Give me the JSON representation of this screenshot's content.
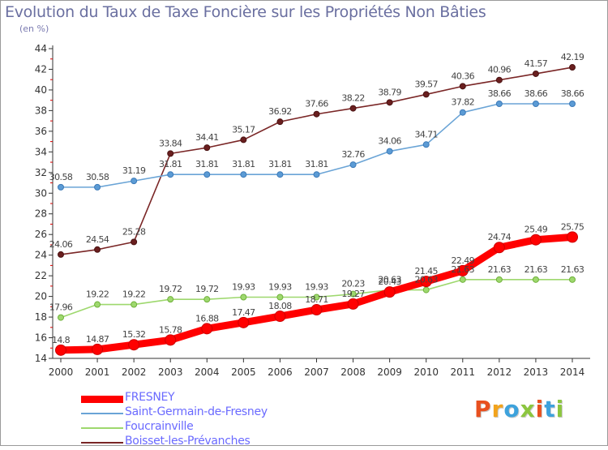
{
  "title": "Evolution du Taux de Taxe Foncière sur les Propriétés Non Bâties",
  "subtitle": "(en %)",
  "logo": {
    "text": "Proxiti",
    "colors": [
      "#e8501f",
      "#f2a31c",
      "#3da2dc",
      "#8cc63f",
      "#e8501f",
      "#3da2dc",
      "#8cc63f"
    ]
  },
  "chart_data": {
    "type": "line",
    "x": [
      "2000",
      "2001",
      "2002",
      "2003",
      "2004",
      "2005",
      "2006",
      "2007",
      "2008",
      "2009",
      "2010",
      "2011",
      "2012",
      "2013",
      "2014"
    ],
    "ylim": [
      14,
      44
    ],
    "yticks": [
      14,
      16,
      18,
      20,
      22,
      24,
      26,
      28,
      30,
      32,
      34,
      36,
      38,
      40,
      42,
      44
    ],
    "grid": false,
    "legend_position": "bottom-left",
    "series": [
      {
        "name": "FRESNEY",
        "color": "#ff0000",
        "values": [
          14.8,
          14.87,
          15.32,
          15.78,
          16.88,
          17.47,
          18.08,
          18.71,
          19.27,
          20.43,
          21.45,
          22.49,
          24.74,
          25.49,
          25.75
        ],
        "labels": [
          "14.8",
          "14.87",
          "15.32",
          "15.78",
          "16.88",
          "17.47",
          "18.08",
          "18.71",
          "19.27",
          "20.43",
          "21.45",
          "22.49",
          "24.74",
          "25.49",
          "25.75"
        ]
      },
      {
        "name": "Saint-Germain-de-Fresney",
        "color": "#6aa4d6",
        "values": [
          30.58,
          30.58,
          31.19,
          31.81,
          31.81,
          31.81,
          31.81,
          31.81,
          32.76,
          34.06,
          34.71,
          37.82,
          38.66,
          38.66,
          38.66
        ],
        "labels": [
          "30.58",
          "30.58",
          "31.19",
          "31.81",
          "31.81",
          "31.81",
          "31.81",
          "31.81",
          "32.76",
          "34.06",
          "34.71",
          "37.82",
          "38.66",
          "38.66",
          "38.66"
        ]
      },
      {
        "name": "Foucrainville",
        "color": "#9ed86e",
        "values": [
          17.96,
          19.22,
          19.22,
          19.72,
          19.72,
          19.93,
          19.93,
          19.93,
          20.23,
          20.63,
          20.63,
          21.63,
          21.63,
          21.63,
          21.63
        ],
        "labels": [
          "17.96",
          "19.22",
          "19.22",
          "19.72",
          "19.72",
          "19.93",
          "19.93",
          "19.93",
          "20.23",
          "20.63",
          "20.63",
          "21.63",
          "21.63",
          "21.63",
          "21.63"
        ]
      },
      {
        "name": "Boisset-les-Prévanches",
        "color": "#7a2626",
        "values": [
          24.06,
          24.54,
          25.28,
          33.84,
          34.41,
          35.17,
          36.92,
          37.66,
          38.22,
          38.79,
          39.57,
          40.36,
          40.96,
          41.57,
          42.19
        ],
        "labels": [
          "24.06",
          "24.54",
          "25.28",
          "33.84",
          "34.41",
          "35.17",
          "36.92",
          "37.66",
          "38.22",
          "38.79",
          "39.57",
          "40.36",
          "40.96",
          "41.57",
          "42.19"
        ]
      }
    ]
  }
}
